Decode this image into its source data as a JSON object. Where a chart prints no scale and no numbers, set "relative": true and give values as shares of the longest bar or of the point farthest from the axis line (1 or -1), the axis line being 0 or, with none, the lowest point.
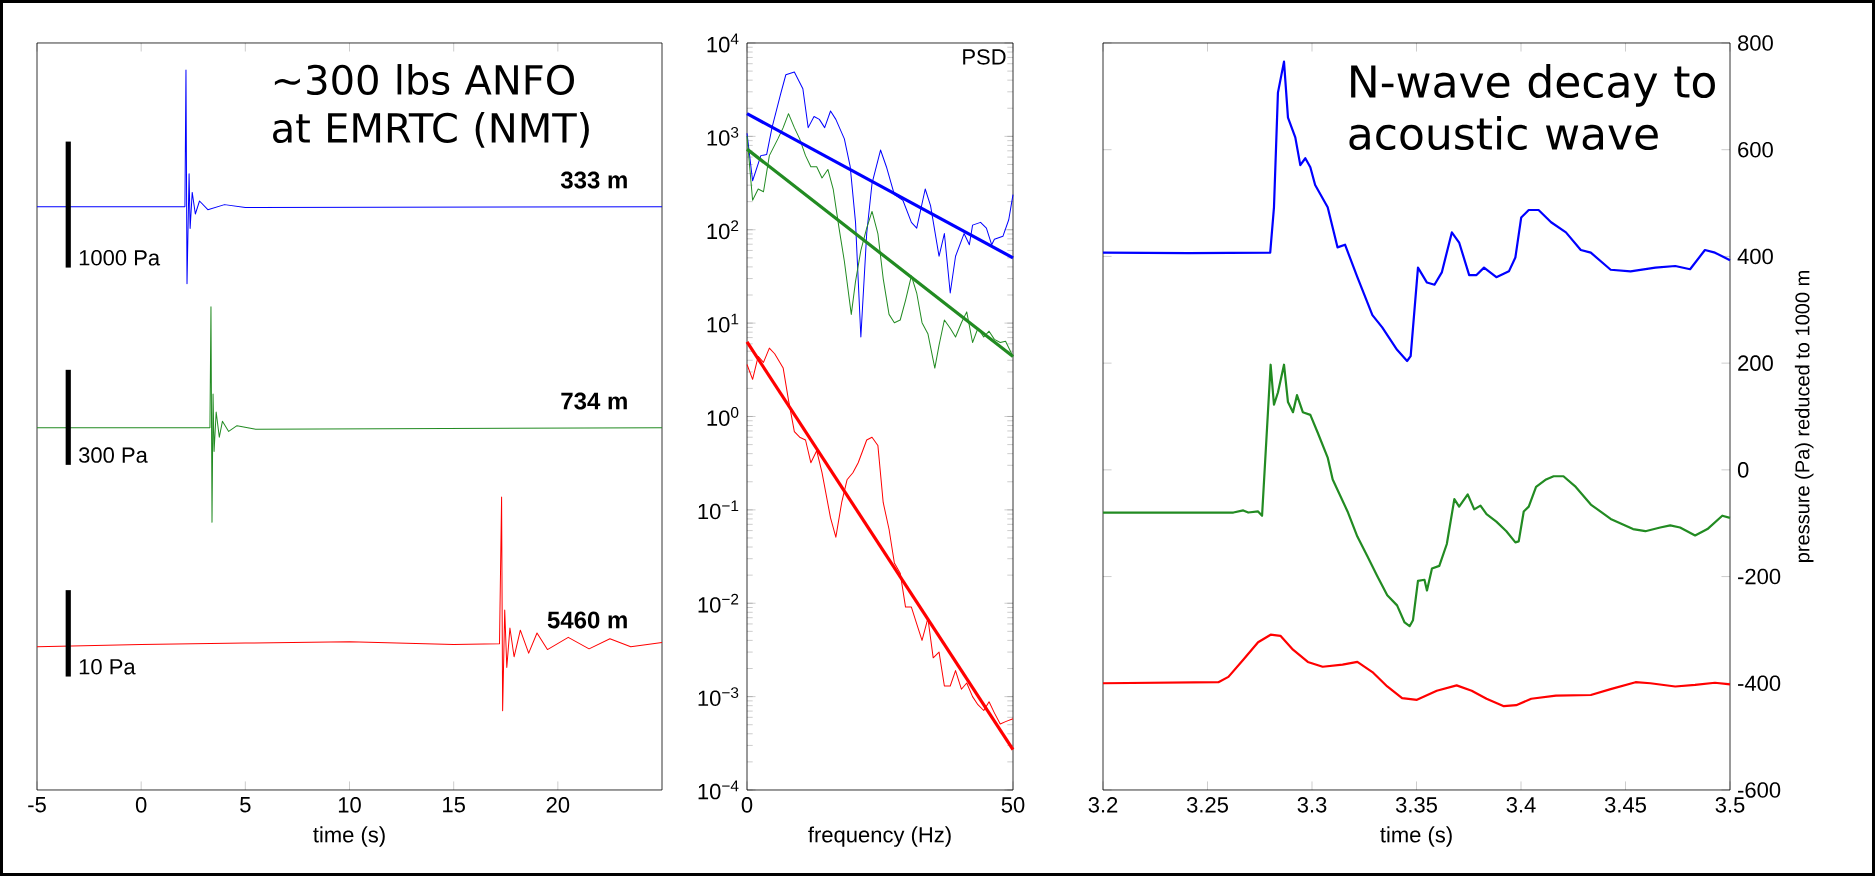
{
  "chart_data": [
    {
      "type": "line",
      "relative": true,
      "xlabel": "time (s)",
      "xlim": [
        -5,
        25
      ],
      "xticks": [
        -5,
        0,
        5,
        10,
        15,
        20
      ],
      "annotations": [
        "~300 lbs ANFO at EMRTC (NMT)",
        "1000 Pa",
        "300 Pa",
        "10 Pa"
      ],
      "series": [
        {
          "name": "333 m",
          "color": "#0000ff",
          "x": [
            -5,
            2.1,
            2.15,
            2.2,
            2.3,
            2.35,
            2.45,
            2.6,
            2.8,
            3.2,
            4,
            5,
            25
          ],
          "values": [
            0.81,
            0.81,
            1.0,
            0.703,
            0.856,
            0.78,
            0.83,
            0.8,
            0.818,
            0.806,
            0.813,
            0.809,
            0.81
          ]
        },
        {
          "name": "734 m",
          "color": "#228b22",
          "x": [
            -5,
            3.3,
            3.35,
            3.4,
            3.45,
            3.5,
            3.6,
            3.75,
            3.9,
            4.2,
            4.6,
            5.5,
            25
          ],
          "values": [
            0.503,
            0.503,
            0.671,
            0.372,
            0.55,
            0.47,
            0.525,
            0.49,
            0.512,
            0.498,
            0.506,
            0.501,
            0.503
          ]
        },
        {
          "name": "5460 m",
          "color": "#ff0000",
          "x": [
            -5,
            0,
            5,
            10,
            15,
            17.2,
            17.3,
            17.35,
            17.45,
            17.55,
            17.7,
            17.9,
            18.2,
            18.6,
            19,
            19.5,
            20.5,
            21.5,
            22.5,
            23.5,
            25
          ],
          "values": [
            0.199,
            0.202,
            0.204,
            0.206,
            0.202,
            0.203,
            0.407,
            0.11,
            0.25,
            0.17,
            0.225,
            0.185,
            0.222,
            0.19,
            0.218,
            0.195,
            0.212,
            0.196,
            0.21,
            0.199,
            0.205
          ]
        }
      ]
    },
    {
      "type": "line",
      "log": "y",
      "xlabel": "frequency (Hz)",
      "xlim": [
        0,
        50
      ],
      "xticks": [
        0,
        50
      ],
      "ylim": [
        0.0001,
        10000
      ],
      "yticks": [
        {
          "value": 0.0001,
          "label": "10$^{−4}$"
        },
        {
          "value": 0.001,
          "label": "10$^{−3}$"
        },
        {
          "value": 0.01,
          "label": "10$^{−2}$"
        },
        {
          "value": 0.1,
          "label": "10$^{−1}$"
        },
        {
          "value": 1,
          "label": "10$^{0}$"
        },
        {
          "value": 10,
          "label": "10$^{1}$"
        },
        {
          "value": 100,
          "label": "10$^{2}$"
        },
        {
          "value": 1000,
          "label": "10$^{3}$"
        },
        {
          "value": 10000,
          "label": "10$^{4}$"
        }
      ],
      "annotations": [
        "PSD"
      ],
      "series": [
        {
          "color": "#0000ff",
          "x": [
            0,
            1.05,
            2.6,
            3.7,
            4.7,
            6.3,
            7.3,
            8.9,
            10.5,
            11.5,
            12.6,
            13.6,
            14.6,
            15.7,
            16.7,
            18.3,
            19.4,
            20.4,
            21.4,
            22.5,
            23.5,
            25.1,
            26.2,
            27.7,
            29.3,
            30.9,
            31.9,
            33.5,
            34.5,
            36.1,
            37.1,
            38.2,
            39.2,
            40.8,
            41.8,
            42.4,
            43.9,
            45,
            46,
            46.5,
            48.1,
            49.2,
            50
          ],
          "values": [
            1080,
            335,
            622,
            640,
            1240,
            2820,
            4570,
            4900,
            3240,
            1240,
            1630,
            1520,
            1240,
            1870,
            1520,
            940,
            473,
            120,
            7.1,
            91,
            313,
            714,
            473,
            238,
            207,
            120,
            104,
            273,
            181,
            52,
            91,
            21,
            52,
            91,
            69,
            112,
            120,
            104,
            69,
            79,
            85,
            128,
            238
          ]
        },
        {
          "color": "#228b22",
          "x": [
            0,
            1.05,
            2.1,
            3.1,
            4.2,
            5.8,
            6.8,
            7.8,
            8.9,
            9.9,
            11,
            12,
            13.1,
            14.1,
            15.2,
            16.2,
            17.3,
            18.3,
            19.6,
            20.4,
            21.4,
            22.5,
            23.5,
            24.6,
            25.6,
            26.7,
            27.7,
            28.8,
            29.8,
            30.9,
            31.9,
            32.9,
            34,
            35.3,
            36.1,
            37.1,
            38.2,
            39.2,
            40.3,
            41.3,
            42.4,
            43.4,
            44.5,
            45.5,
            46.5,
            47.6,
            48.6,
            50
          ],
          "values": [
            1010,
            207,
            273,
            255,
            622,
            940,
            1240,
            1750,
            1240,
            940,
            622,
            473,
            473,
            359,
            442,
            273,
            104,
            46,
            12.4,
            28,
            60,
            104,
            157,
            91,
            30,
            12.4,
            10.1,
            10.8,
            17.5,
            32,
            21,
            10.1,
            7.7,
            3.3,
            5.8,
            10.8,
            8.8,
            7.1,
            10.1,
            13.2,
            6.2,
            8.8,
            7.1,
            8.2,
            6.7,
            6.2,
            6.4,
            4.4
          ]
        },
        {
          "color": "#ff0000",
          "x": [
            0,
            1.05,
            2.1,
            3.1,
            4.2,
            5.2,
            6.8,
            7.8,
            8.9,
            9.9,
            11,
            12,
            13.1,
            14.1,
            15.7,
            16.7,
            17.8,
            18.8,
            19.9,
            20.9,
            22.5,
            23.5,
            24.6,
            25.6,
            26.7,
            27.7,
            28.8,
            29.8,
            30.9,
            31.9,
            32.9,
            34,
            35,
            36.1,
            37.1,
            38.2,
            39.2,
            40.3,
            41.3,
            42.4,
            43.4,
            44.5,
            45.5,
            46.5,
            47.6,
            48.6,
            50
          ],
          "values": [
            3.6,
            2.5,
            4.4,
            3.8,
            5.4,
            4.7,
            3.3,
            1.5,
            0.69,
            0.6,
            0.56,
            0.32,
            0.43,
            0.25,
            0.082,
            0.051,
            0.12,
            0.21,
            0.25,
            0.32,
            0.56,
            0.6,
            0.49,
            0.12,
            0.062,
            0.027,
            0.021,
            0.0091,
            0.0091,
            0.006,
            0.004,
            0.0069,
            0.0026,
            0.003,
            0.0013,
            0.0013,
            0.0019,
            0.0012,
            0.0014,
            0.001,
            0.00082,
            0.00071,
            0.00088,
            0.00067,
            0.00051,
            0.00054,
            0.00058
          ]
        },
        {
          "type": "line",
          "color": "#0000ff",
          "x": [
            0,
            50
          ],
          "values": [
            1750,
            50
          ]
        },
        {
          "type": "line",
          "color": "#228b22",
          "x": [
            0,
            50
          ],
          "values": [
            730,
            4.4
          ]
        },
        {
          "type": "line",
          "color": "#ff0000",
          "x": [
            0,
            50
          ],
          "values": [
            6.3,
            0.00027
          ]
        }
      ]
    },
    {
      "type": "line",
      "xlabel": "time (s)",
      "y2label": "pressure (Pa) reduced to 1000 m",
      "xlim": [
        3.2,
        3.5
      ],
      "xticks": [
        3.2,
        3.25,
        3.3,
        3.35,
        3.4,
        3.45,
        3.5
      ],
      "y2lim": [
        -600,
        800
      ],
      "y2ticks": [
        -600,
        -400,
        -200,
        0,
        200,
        400,
        600,
        800
      ],
      "annotations": [
        "N-wave decay to acoustic wave"
      ],
      "series": [
        {
          "axis": "y2",
          "color": "#0000ff",
          "x": [
            3.2,
            3.241,
            3.28,
            3.2818,
            3.2837,
            3.2866,
            3.2885,
            3.292,
            3.2944,
            3.2968,
            3.2992,
            3.3015,
            3.3075,
            3.3122,
            3.3158,
            3.3217,
            3.3289,
            3.3336,
            3.3407,
            3.3455,
            3.3472,
            3.3507,
            3.355,
            3.3586,
            3.3621,
            3.3669,
            3.3704,
            3.3752,
            3.3787,
            3.3823,
            3.3882,
            3.3942,
            3.3973,
            3.4001,
            3.4037,
            3.4084,
            3.4144,
            3.4215,
            3.4286,
            3.4334,
            3.4429,
            3.4524,
            3.4643,
            3.4738,
            3.4809,
            3.488,
            3.4928,
            3.5
          ],
          "values": [
            407,
            406,
            407,
            492,
            707,
            765,
            660,
            623,
            571,
            584,
            567,
            534,
            492,
            417,
            422,
            361,
            290,
            267,
            225,
            204,
            213,
            379,
            351,
            347,
            370,
            445,
            426,
            365,
            365,
            379,
            361,
            372,
            398,
            473,
            487,
            487,
            464,
            445,
            412,
            407,
            375,
            372,
            379,
            382,
            376,
            412,
            407,
            393
          ]
        },
        {
          "axis": "y2",
          "color": "#228b22",
          "x": [
            3.2,
            3.2624,
            3.2671,
            3.2695,
            3.2742,
            3.2761,
            3.2802,
            3.2818,
            3.2837,
            3.2866,
            3.2885,
            3.2909,
            3.2928,
            3.2956,
            3.2992,
            3.3027,
            3.3075,
            3.3099,
            3.317,
            3.3217,
            3.3265,
            3.3312,
            3.336,
            3.3407,
            3.3443,
            3.3467,
            3.3483,
            3.3507,
            3.3538,
            3.355,
            3.3574,
            3.3609,
            3.3645,
            3.3681,
            3.3704,
            3.3745,
            3.3776,
            3.3806,
            3.3835,
            3.3882,
            3.393,
            3.3973,
            3.3989,
            3.4013,
            3.4037,
            3.4072,
            3.412,
            3.4156,
            3.4203,
            3.4262,
            3.4334,
            3.4429,
            3.4536,
            3.4595,
            3.4666,
            3.4714,
            3.4761,
            3.4833,
            3.4892,
            3.4963,
            3.5
          ],
          "values": [
            -80,
            -80,
            -76,
            -80,
            -78,
            -86,
            197,
            122,
            145,
            197,
            127,
            108,
            140,
            108,
            103,
            70,
            23,
            -18,
            -78,
            -125,
            -162,
            -199,
            -235,
            -254,
            -286,
            -293,
            -282,
            -208,
            -206,
            -226,
            -185,
            -180,
            -139,
            -55,
            -69,
            -46,
            -74,
            -67,
            -83,
            -97,
            -115,
            -136,
            -134,
            -78,
            -69,
            -32,
            -18,
            -12,
            -12,
            -32,
            -65,
            -92,
            -111,
            -115,
            -108,
            -104,
            -108,
            -123,
            -111,
            -86,
            -90
          ]
        },
        {
          "axis": "y2",
          "color": "#ff0000",
          "x": [
            3.2,
            3.2552,
            3.26,
            3.2671,
            3.2742,
            3.2802,
            3.2849,
            3.2909,
            3.298,
            3.3051,
            3.3146,
            3.3217,
            3.3289,
            3.336,
            3.3431,
            3.3502,
            3.3597,
            3.3692,
            3.3764,
            3.3835,
            3.3918,
            3.3977,
            3.4049,
            3.4167,
            3.4334,
            3.4429,
            3.4548,
            3.4619,
            3.4738,
            3.4833,
            3.4928,
            3.5
          ],
          "values": [
            -400,
            -398,
            -388,
            -356,
            -323,
            -309,
            -311,
            -337,
            -360,
            -369,
            -365,
            -360,
            -379,
            -406,
            -428,
            -431,
            -414,
            -404,
            -414,
            -429,
            -443,
            -441,
            -429,
            -423,
            -422,
            -411,
            -398,
            -400,
            -406,
            -403,
            -399,
            -402
          ]
        }
      ]
    }
  ]
}
